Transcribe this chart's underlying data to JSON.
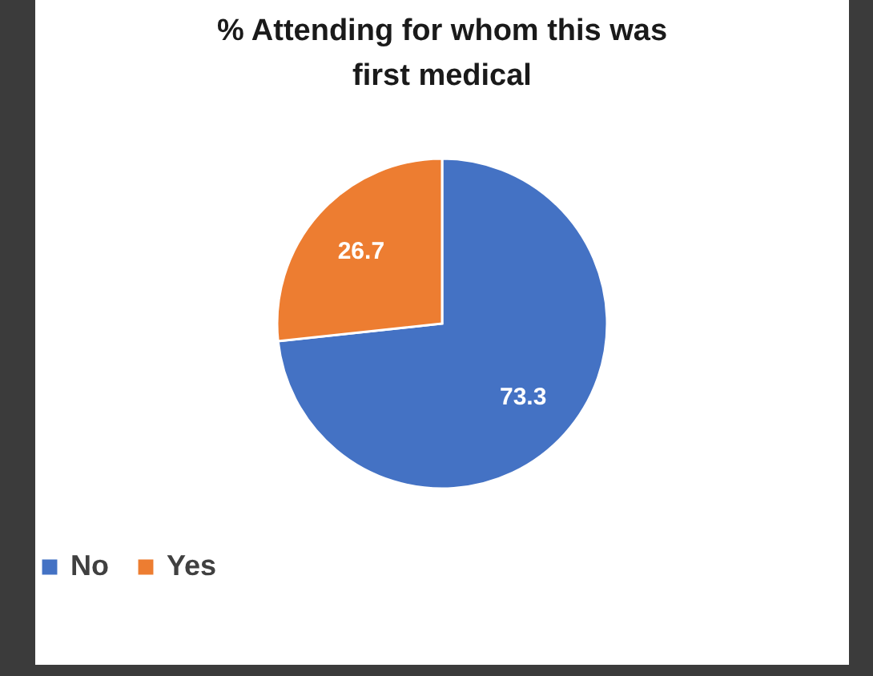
{
  "chart_data": {
    "type": "pie",
    "title": "% Attending for whom this was first medical",
    "categories": [
      "No",
      "Yes"
    ],
    "values": [
      73.3,
      26.7
    ],
    "colors": [
      "#4472c4",
      "#ed7d31"
    ],
    "data_labels": true,
    "legend": "bottom"
  }
}
